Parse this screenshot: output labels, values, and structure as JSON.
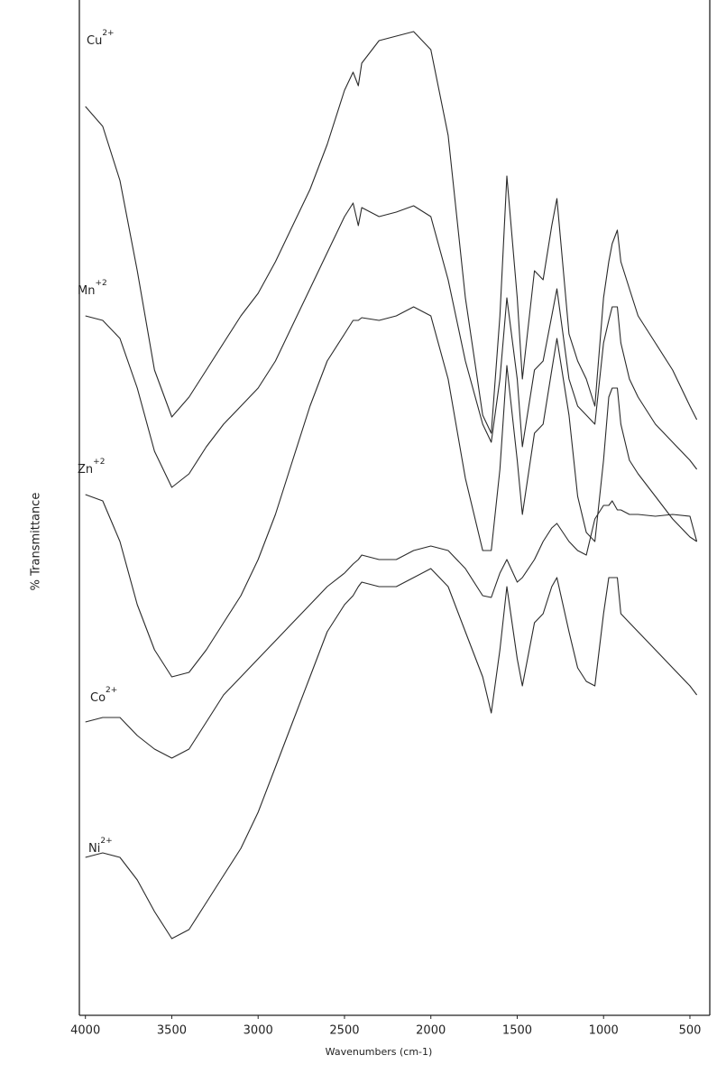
{
  "chart_data": {
    "type": "line",
    "x_label": "Wavenumbers (cm-1)",
    "y_label": "% Transmittance",
    "xlim": [
      4035,
      385
    ],
    "ylim": [
      0,
      112
    ],
    "xticks": [
      4000,
      3500,
      3000,
      2500,
      2000,
      1500,
      1000,
      500
    ],
    "x": [
      4000,
      3900,
      3800,
      3700,
      3600,
      3500,
      3400,
      3300,
      3200,
      3100,
      3000,
      2900,
      2800,
      2700,
      2600,
      2500,
      2450,
      2420,
      2400,
      2300,
      2200,
      2100,
      2000,
      1900,
      1800,
      1700,
      1650,
      1600,
      1560,
      1500,
      1470,
      1400,
      1350,
      1300,
      1270,
      1200,
      1150,
      1100,
      1050,
      1000,
      970,
      950,
      920,
      900,
      850,
      800,
      700,
      600,
      500,
      460
    ],
    "series": [
      {
        "name": "Cu",
        "charge": "2+",
        "color": "#2a2a2a",
        "values": [
          100.7,
          98.5,
          92.5,
          82.5,
          71.5,
          66.3,
          68.5,
          71.5,
          74.5,
          77.5,
          80,
          83.5,
          87.5,
          91.5,
          96.5,
          102.5,
          104.5,
          103,
          105.5,
          108,
          108.5,
          109,
          107,
          97.5,
          79.5,
          66.5,
          64.5,
          77.5,
          93,
          79.5,
          70.5,
          82.5,
          81.5,
          87.5,
          90.5,
          75.5,
          72.5,
          70.5,
          67.5,
          79.5,
          83.5,
          85.5,
          87,
          83.5,
          80.5,
          77.5,
          74.5,
          71.5,
          67.5,
          66
        ]
      },
      {
        "name": "Mn",
        "charge": "+2",
        "color": "#2a2a2a",
        "values": [
          77.5,
          77,
          75,
          69.5,
          62.5,
          58.5,
          60,
          63,
          65.5,
          67.5,
          69.5,
          72.5,
          76.5,
          80.5,
          84.5,
          88.5,
          90,
          87.5,
          89.5,
          88.5,
          89,
          89.7,
          88.5,
          81.5,
          72.5,
          65.5,
          63.5,
          70.5,
          79.5,
          70.5,
          63,
          71.5,
          72.5,
          77.5,
          80.5,
          70.5,
          67.5,
          66.5,
          65.5,
          74.5,
          77,
          78.5,
          78.5,
          74.5,
          70.5,
          68.5,
          65.5,
          63.5,
          61.5,
          60.5
        ]
      },
      {
        "name": "Zn",
        "charge": "+2",
        "color": "#2a2a2a",
        "values": [
          57.7,
          57,
          52.5,
          45.5,
          40.5,
          37.5,
          38,
          40.5,
          43.5,
          46.5,
          50.5,
          55.5,
          61.5,
          67.5,
          72.5,
          75.5,
          77,
          77,
          77.3,
          77,
          77.5,
          78.5,
          77.5,
          70.5,
          59.5,
          51.5,
          51.5,
          60.5,
          72,
          61.5,
          55.5,
          64.5,
          65.5,
          71.5,
          75,
          66.5,
          57.5,
          53.5,
          52.5,
          61.5,
          68.5,
          69.5,
          69.5,
          65.5,
          61.5,
          60,
          57.5,
          55,
          53,
          52.5
        ]
      },
      {
        "name": "Co",
        "charge": "2+",
        "color": "#2a2a2a",
        "values": [
          32.5,
          33,
          33,
          31,
          29.5,
          28.5,
          29.5,
          32.5,
          35.5,
          37.5,
          39.5,
          41.5,
          43.5,
          45.5,
          47.5,
          49,
          50,
          50.5,
          51,
          50.5,
          50.5,
          51.5,
          52,
          51.5,
          49.5,
          46.5,
          46.3,
          49,
          50.5,
          48,
          48.5,
          50.5,
          52.5,
          54,
          54.5,
          52.5,
          51.5,
          51,
          55,
          56.5,
          56.5,
          57,
          56,
          56,
          55.5,
          55.5,
          55.3,
          55.5,
          55.3,
          52.5
        ]
      },
      {
        "name": "Ni",
        "charge": "2+",
        "color": "#2a2a2a",
        "values": [
          17.5,
          18,
          17.5,
          15,
          11.5,
          8.5,
          9.5,
          12.5,
          15.5,
          18.5,
          22.5,
          27.5,
          32.5,
          37.5,
          42.5,
          45.5,
          46.5,
          47.5,
          48,
          47.5,
          47.5,
          48.5,
          49.5,
          47.5,
          42.5,
          37.5,
          33.5,
          40.5,
          47.5,
          39.5,
          36.5,
          43.5,
          44.5,
          47.5,
          48.5,
          42.5,
          38.5,
          37,
          36.5,
          44.5,
          48.5,
          48.5,
          48.5,
          44.5,
          43.5,
          42.5,
          40.5,
          38.5,
          36.5,
          35.5
        ]
      }
    ]
  }
}
